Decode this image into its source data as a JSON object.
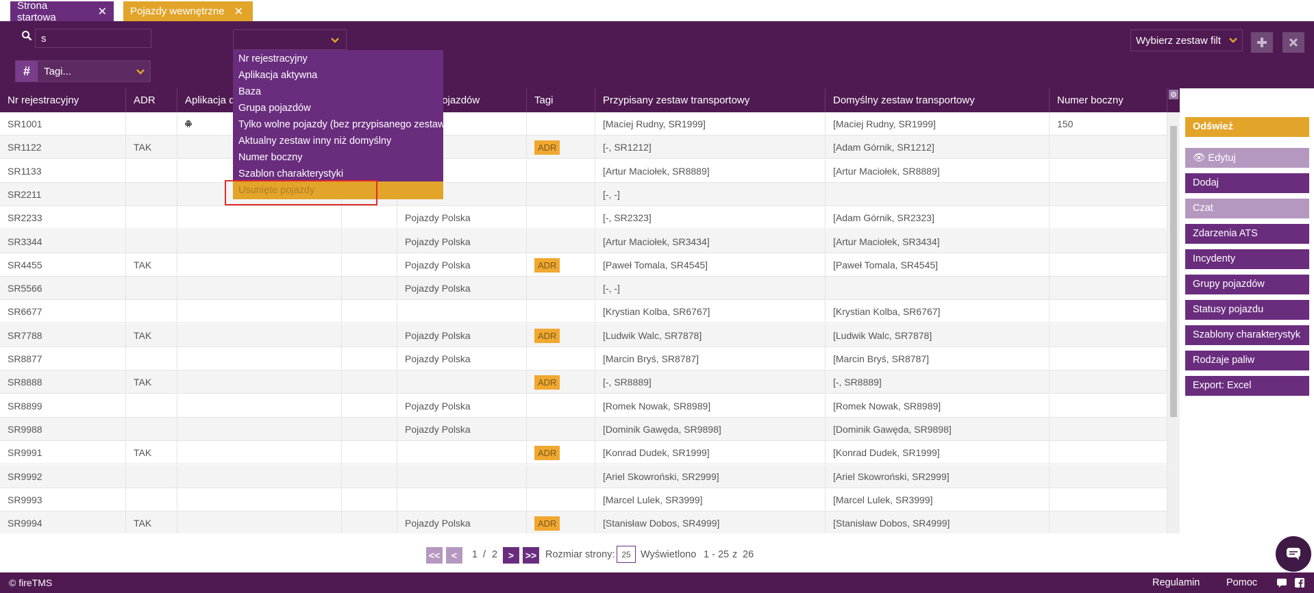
{
  "tabs": [
    {
      "label": "Strona startowa",
      "close": "✕"
    },
    {
      "label": "Pojazdy wewnętrzne",
      "close": "✕"
    }
  ],
  "search": {
    "value": "s"
  },
  "tags": {
    "label": "Tagi...",
    "hash": "#"
  },
  "filter_set": {
    "label": "Wybierz zestaw filt"
  },
  "columns": [
    "Nr rejestracyjny",
    "ADR",
    "Aplikacja d",
    "",
    "Grupa pojazdów",
    "Tagi",
    "Przypisany zestaw transportowy",
    "Domyślny zestaw transportowy",
    "Numer boczny"
  ],
  "dropdown": {
    "items": [
      "Nr rejestracyjny",
      "Aplikacja aktywna",
      "Baza",
      "Grupa pojazdów",
      "Tylko wolne pojazdy (bez przypisanego zestawu)",
      "Aktualny zestaw inny niż domyślny",
      "Numer boczny",
      "Szablon charakterystyki",
      "Usunięte pojazdy"
    ]
  },
  "rows": [
    {
      "reg": "SR1001",
      "adr": "",
      "app": "android",
      "group": "",
      "tag": "",
      "assigned": "[Maciej Rudny, SR1999]",
      "default": "[Maciej Rudny, SR1999]",
      "side": "150"
    },
    {
      "reg": "SR1122",
      "adr": "TAK",
      "app": "",
      "group": "",
      "tag": "ADR",
      "assigned": "[-, SR1212]",
      "default": "[Adam Górnik, SR1212]",
      "side": ""
    },
    {
      "reg": "SR1133",
      "adr": "",
      "app": "",
      "group": "",
      "tag": "",
      "assigned": "[Artur Maciołek, SR8889]",
      "default": "[Artur Maciołek, SR8889]",
      "side": ""
    },
    {
      "reg": "SR2211",
      "adr": "",
      "app": "",
      "group": "",
      "tag": "",
      "assigned": "[-, -]",
      "default": "",
      "side": ""
    },
    {
      "reg": "SR2233",
      "adr": "",
      "app": "",
      "group": "Pojazdy Polska",
      "tag": "",
      "assigned": "[-, SR2323]",
      "default": "[Adam Górnik, SR2323]",
      "side": ""
    },
    {
      "reg": "SR3344",
      "adr": "",
      "app": "",
      "group": "Pojazdy Polska",
      "tag": "",
      "assigned": "[Artur Maciołek, SR3434]",
      "default": "[Artur Maciołek, SR3434]",
      "side": ""
    },
    {
      "reg": "SR4455",
      "adr": "TAK",
      "app": "",
      "group": "Pojazdy Polska",
      "tag": "ADR",
      "assigned": "[Paweł Tomala, SR4545]",
      "default": "[Paweł Tomala, SR4545]",
      "side": ""
    },
    {
      "reg": "SR5566",
      "adr": "",
      "app": "",
      "group": "Pojazdy Polska",
      "tag": "",
      "assigned": "[-, -]",
      "default": "",
      "side": ""
    },
    {
      "reg": "SR6677",
      "adr": "",
      "app": "",
      "group": "",
      "tag": "",
      "assigned": "[Krystian Kolba, SR6767]",
      "default": "[Krystian Kolba, SR6767]",
      "side": ""
    },
    {
      "reg": "SR7788",
      "adr": "TAK",
      "app": "",
      "group": "Pojazdy Polska",
      "tag": "ADR",
      "assigned": "[Ludwik Walc, SR7878]",
      "default": "[Ludwik Walc, SR7878]",
      "side": ""
    },
    {
      "reg": "SR8877",
      "adr": "",
      "app": "",
      "group": "Pojazdy Polska",
      "tag": "",
      "assigned": "[Marcin Bryś, SR8787]",
      "default": "[Marcin Bryś, SR8787]",
      "side": ""
    },
    {
      "reg": "SR8888",
      "adr": "TAK",
      "app": "",
      "group": "",
      "tag": "ADR",
      "assigned": "[-, SR8889]",
      "default": "[-, SR8889]",
      "side": ""
    },
    {
      "reg": "SR8899",
      "adr": "",
      "app": "",
      "group": "Pojazdy Polska",
      "tag": "",
      "assigned": "[Romek Nowak, SR8989]",
      "default": "[Romek Nowak, SR8989]",
      "side": ""
    },
    {
      "reg": "SR9988",
      "adr": "",
      "app": "",
      "group": "Pojazdy Polska",
      "tag": "",
      "assigned": "[Dominik Gawęda, SR9898]",
      "default": "[Dominik Gawęda, SR9898]",
      "side": ""
    },
    {
      "reg": "SR9991",
      "adr": "TAK",
      "app": "",
      "group": "",
      "tag": "ADR",
      "assigned": "[Konrad Dudek, SR1999]",
      "default": "[Konrad Dudek, SR1999]",
      "side": ""
    },
    {
      "reg": "SR9992",
      "adr": "",
      "app": "",
      "group": "",
      "tag": "",
      "assigned": "[Ariel Skowroński, SR2999]",
      "default": "[Ariel Skowroński, SR2999]",
      "side": ""
    },
    {
      "reg": "SR9993",
      "adr": "",
      "app": "",
      "group": "",
      "tag": "",
      "assigned": "[Marcel Lulek, SR3999]",
      "default": "[Marcel Lulek, SR3999]",
      "side": ""
    },
    {
      "reg": "SR9994",
      "adr": "TAK",
      "app": "",
      "group": "Pojazdy Polska",
      "tag": "ADR",
      "assigned": "[Stanisław Dobos, SR4999]",
      "default": "[Stanisław Dobos, SR4999]",
      "side": ""
    }
  ],
  "sidebar": {
    "buttons": [
      {
        "label": "Odśwież",
        "style": "refresh"
      },
      {
        "label": "Edytuj",
        "style": "disabled"
      },
      {
        "label": "Dodaj",
        "style": "main"
      },
      {
        "label": "Czat",
        "style": "disabled"
      },
      {
        "label": "Zdarzenia ATS",
        "style": "main"
      },
      {
        "label": "Incydenty",
        "style": "main"
      },
      {
        "label": "Grupy pojazdów",
        "style": "main"
      },
      {
        "label": "Statusy pojazdu",
        "style": "main"
      },
      {
        "label": "Szablony charakterystyk",
        "style": "main"
      },
      {
        "label": "Rodzaje paliw",
        "style": "main"
      },
      {
        "label": "Export: Excel",
        "style": "main"
      }
    ]
  },
  "pagination": {
    "first": "<<",
    "prev": "<",
    "next": ">",
    "last": ">>",
    "current": "1",
    "sep": "/",
    "total": "2",
    "size_label": "Rozmiar strony:",
    "size": "25",
    "shown_label": "Wyświetlono",
    "range": "1 - 25",
    "of": "z",
    "count": "26"
  },
  "footer": {
    "copyright": "© fireTMS",
    "terms": "Regulamin",
    "help": "Pomoc"
  },
  "colors": {
    "purple_dark": "#4f1a52",
    "purple": "#6a2d7e",
    "orange": "#e3a42a",
    "adr_badge": "#f0a830"
  }
}
